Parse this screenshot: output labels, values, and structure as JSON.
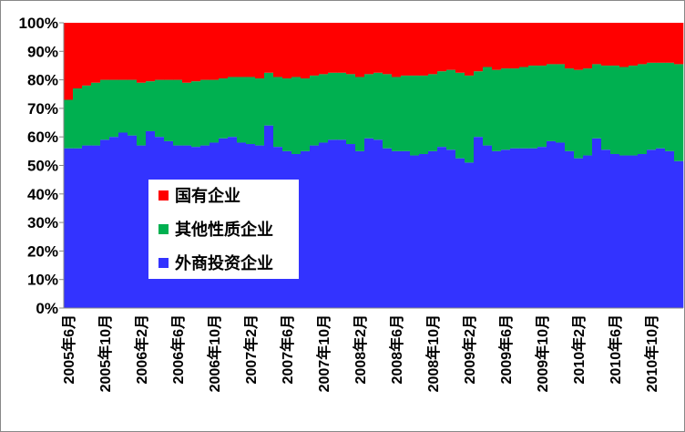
{
  "chart_data": {
    "type": "stacked_bar_100",
    "categories": [
      "2005年6月",
      null,
      null,
      null,
      "2005年10月",
      null,
      null,
      null,
      "2006年2月",
      null,
      null,
      null,
      "2006年6月",
      null,
      null,
      null,
      "2006年10月",
      null,
      null,
      null,
      "2007年2月",
      null,
      null,
      null,
      "2007年6月",
      null,
      null,
      null,
      "2007年10月",
      null,
      null,
      null,
      "2008年2月",
      null,
      null,
      null,
      "2008年6月",
      null,
      null,
      null,
      "2008年10月",
      null,
      null,
      null,
      "2009年2月",
      null,
      null,
      null,
      "2009年6月",
      null,
      null,
      null,
      "2009年10月",
      null,
      null,
      null,
      "2010年2月",
      null,
      null,
      null,
      "2010年6月",
      null,
      null,
      null,
      "2010年10月",
      null,
      null,
      null
    ],
    "series": [
      {
        "name": "外商投资企业",
        "color": "#3333ff",
        "values": [
          56,
          56,
          57,
          57,
          59,
          60,
          61.5,
          60.5,
          57,
          62,
          60,
          58.5,
          57,
          57,
          56.5,
          57,
          58,
          59.5,
          60,
          58,
          57.5,
          57,
          64,
          56.5,
          55,
          54,
          55,
          57,
          58,
          59,
          59,
          57.5,
          55,
          59.5,
          59,
          56,
          55,
          55,
          53.5,
          54,
          55,
          56.5,
          55.5,
          52.5,
          51,
          60,
          57,
          55,
          55.5,
          56,
          56,
          56,
          56.5,
          58.5,
          58,
          55,
          52.5,
          53.5,
          59.5,
          55.5,
          54,
          53.5,
          53.5,
          54,
          55.5,
          56,
          55,
          51.5
        ]
      },
      {
        "name": "其他性质企业",
        "color": "#00b050",
        "values": [
          17,
          21,
          21,
          22,
          21,
          20,
          18.5,
          19.5,
          22,
          17.5,
          20,
          21.5,
          23,
          22,
          23,
          23,
          22,
          21,
          21,
          23,
          23.5,
          23.5,
          18.5,
          24.5,
          25.5,
          27,
          25.5,
          24.5,
          24,
          23.5,
          23.5,
          24.5,
          26,
          22.5,
          23.5,
          26,
          26,
          26.5,
          28,
          27.5,
          27,
          26.5,
          28,
          30,
          30.5,
          23,
          27.5,
          28.5,
          28.5,
          28,
          28.5,
          29,
          28.5,
          27,
          27.5,
          29,
          31,
          30.5,
          26,
          29.5,
          31,
          31,
          31.5,
          31.5,
          30.5,
          30,
          31,
          34
        ]
      },
      {
        "name": "国有企业",
        "color": "#ff0000",
        "values": [
          27,
          23,
          22,
          21,
          20,
          20,
          20,
          20,
          21,
          20.5,
          20,
          20,
          20,
          21,
          20.5,
          20,
          20,
          19.5,
          19,
          19,
          19,
          19.5,
          17.5,
          19,
          19.5,
          19,
          19.5,
          18.5,
          18,
          17.5,
          17.5,
          18,
          19,
          18,
          17.5,
          18,
          19,
          18.5,
          18.5,
          18.5,
          18,
          17,
          16.5,
          17.5,
          18.5,
          17,
          15.5,
          16.5,
          16,
          16,
          15.5,
          15,
          15,
          14.5,
          14.5,
          16,
          16.5,
          16,
          14.5,
          15,
          15,
          15.5,
          15,
          14.5,
          14,
          14,
          14,
          14.5
        ]
      }
    ],
    "ylim": [
      0,
      100
    ],
    "yticks": [
      {
        "value": 0,
        "label": "0%"
      },
      {
        "value": 10,
        "label": "10%"
      },
      {
        "value": 20,
        "label": "20%"
      },
      {
        "value": 30,
        "label": "30%"
      },
      {
        "value": 40,
        "label": "40%"
      },
      {
        "value": 50,
        "label": "50%"
      },
      {
        "value": 60,
        "label": "60%"
      },
      {
        "value": 70,
        "label": "70%"
      },
      {
        "value": 80,
        "label": "80%"
      },
      {
        "value": 90,
        "label": "90%"
      },
      {
        "value": 100,
        "label": "100%"
      }
    ],
    "legend": "left"
  }
}
